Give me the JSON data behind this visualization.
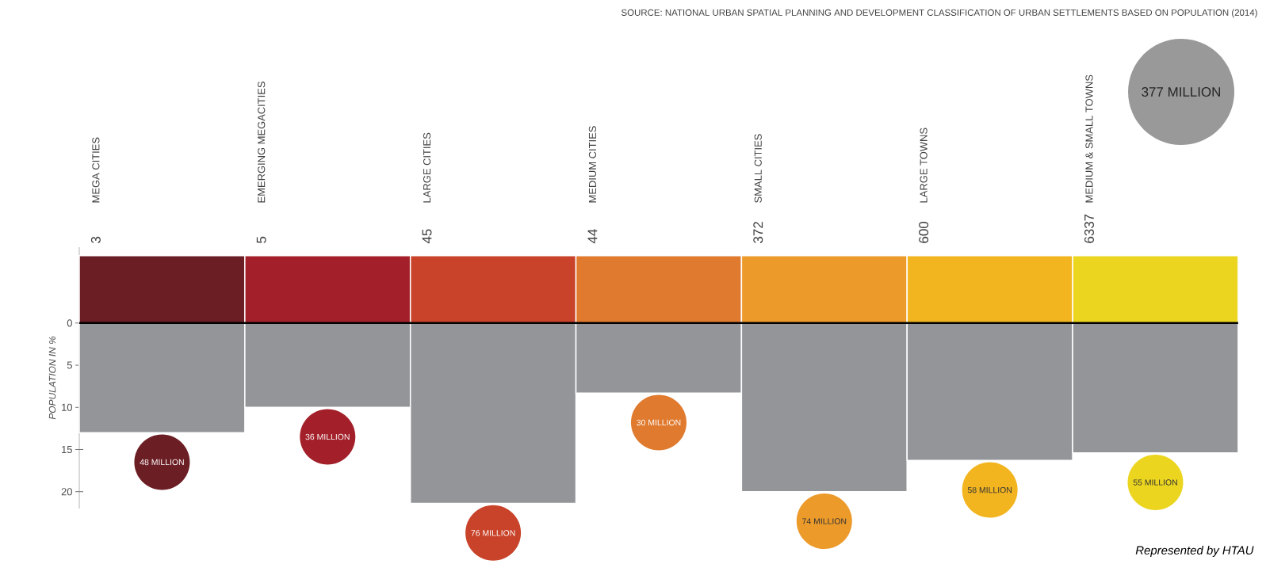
{
  "chart_data": {
    "type": "bar",
    "annotations": [
      "SOURCE: NATIONAL URBAN SPATIAL PLANNING AND DEVELOPMENT CLASSIFICATION OF URBAN SETTLEMENTS BASED ON POPULATION (2014)",
      "377 MILLION",
      "Represented by HTAU",
      "3",
      "5",
      "45",
      "44",
      "372",
      "600",
      "6337",
      "48 MILLION",
      "36 MILLION",
      "76 MILLION",
      "30 MILLION",
      "74 MILLION",
      "58 MILLION",
      "55 MILLION"
    ],
    "categories": [
      "MEGA CITIES",
      "EMERGING MEGACITIES",
      "LARGE CITIES",
      "MEDIUM CITIES",
      "SMALL CITIES",
      "LARGE TOWNS",
      "MEDIUM & SMALL TOWNS"
    ],
    "ylabel": "POPULATION IN %",
    "stacked": true,
    "ylim": [
      22,
      -9
    ],
    "yticks": [
      0,
      5,
      10,
      15,
      20
    ],
    "series": [
      {
        "colors": [
          "#6b1e24",
          "#a3202a",
          "#c8432a",
          "#e07a2e",
          "#ec9a2a",
          "#f2b51f",
          "#ebd51f"
        ],
        "values": [
          -8,
          -8,
          -8,
          -8,
          -8,
          -8,
          -8
        ]
      },
      {
        "color": "#939598",
        "values": [
          13,
          10,
          21.4,
          8.3,
          20,
          16.3,
          15.4
        ]
      }
    ]
  }
}
